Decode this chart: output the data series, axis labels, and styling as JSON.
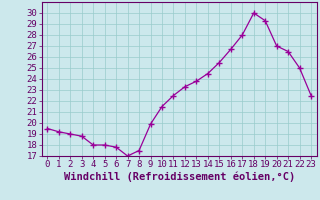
{
  "x": [
    0,
    1,
    2,
    3,
    4,
    5,
    6,
    7,
    8,
    9,
    10,
    11,
    12,
    13,
    14,
    15,
    16,
    17,
    18,
    19,
    20,
    21,
    22,
    23
  ],
  "y": [
    19.5,
    19.2,
    19.0,
    18.8,
    18.0,
    18.0,
    17.8,
    17.0,
    17.5,
    19.9,
    21.5,
    22.5,
    23.3,
    23.8,
    24.5,
    25.5,
    26.7,
    28.0,
    30.0,
    29.3,
    27.0,
    26.5,
    25.0,
    22.5
  ],
  "line_color": "#990099",
  "marker": "+",
  "marker_size": 4,
  "bg_color": "#cce8ec",
  "grid_color": "#99cccc",
  "xlabel": "Windchill (Refroidissement éolien,°C)",
  "ylim": [
    17,
    31
  ],
  "xlim": [
    -0.5,
    23.5
  ],
  "yticks": [
    17,
    18,
    19,
    20,
    21,
    22,
    23,
    24,
    25,
    26,
    27,
    28,
    29,
    30
  ],
  "xticks": [
    0,
    1,
    2,
    3,
    4,
    5,
    6,
    7,
    8,
    9,
    10,
    11,
    12,
    13,
    14,
    15,
    16,
    17,
    18,
    19,
    20,
    21,
    22,
    23
  ],
  "tick_color": "#660066",
  "axis_color": "#660066",
  "tick_fontsize": 6.5,
  "xlabel_fontsize": 7.5
}
